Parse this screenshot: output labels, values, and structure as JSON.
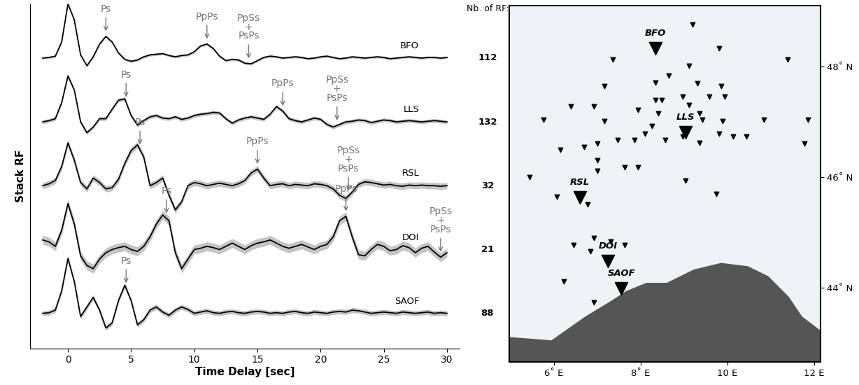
{
  "chart_data": [
    {
      "type": "line",
      "xlabel": "Time Delay [sec]",
      "ylabel": "Stack RF",
      "count_label": "Nb. of RF:",
      "tick_labels": "x",
      "xlim": [
        -3,
        31
      ],
      "xticks": [
        0,
        5,
        10,
        15,
        20,
        25,
        30
      ],
      "x": [
        -2,
        -1.5,
        -1,
        -0.5,
        0,
        0.5,
        1,
        1.5,
        2,
        2.5,
        3,
        3.5,
        4,
        4.5,
        5,
        5.5,
        6,
        6.5,
        7,
        7.5,
        8,
        8.5,
        9,
        9.5,
        10,
        10.5,
        11,
        11.5,
        12,
        12.5,
        13,
        13.5,
        14,
        14.5,
        15,
        15.5,
        16,
        16.5,
        17,
        17.5,
        18,
        18.5,
        19,
        19.5,
        20,
        20.5,
        21,
        21.5,
        22,
        22.5,
        23,
        23.5,
        24,
        24.5,
        25,
        25.5,
        26,
        26.5,
        27,
        27.5,
        28,
        28.5,
        29,
        29.5,
        30
      ],
      "series": [
        {
          "name": "BFO",
          "color": "#000000",
          "count": 112,
          "error": 0.02,
          "values": [
            0.0,
            0.01,
            0.03,
            0.25,
            0.85,
            0.6,
            0.05,
            -0.12,
            0.02,
            0.22,
            0.34,
            0.25,
            0.08,
            -0.02,
            -0.05,
            -0.03,
            0.02,
            0.05,
            0.06,
            0.07,
            0.04,
            0.02,
            0.04,
            0.05,
            0.1,
            0.19,
            0.22,
            0.15,
            0.03,
            -0.04,
            -0.02,
            -0.03,
            -0.08,
            -0.09,
            -0.04,
            0.01,
            0.03,
            0.02,
            0.0,
            0.01,
            0.02,
            0.01,
            -0.01,
            0.0,
            0.02,
            0.03,
            0.01,
            -0.01,
            0.0,
            0.02,
            0.01,
            0.0,
            0.01,
            0.02,
            0.01,
            -0.01,
            0.0,
            0.01,
            0.02,
            0.01,
            0.0,
            0.01,
            0.01,
            0.0,
            0.01
          ],
          "phases": [
            {
              "label": "Ps",
              "x": 3.0
            },
            {
              "label": "PpPs",
              "x": 11.0
            },
            {
              "label": "PpSs\n+\nPsPs",
              "x": 14.3
            }
          ]
        },
        {
          "name": "LLS",
          "color": "#000000",
          "count": 132,
          "error": 0.03,
          "values": [
            0.0,
            0.02,
            0.05,
            0.3,
            0.72,
            0.5,
            0.0,
            -0.17,
            -0.08,
            0.05,
            0.05,
            0.2,
            0.34,
            0.36,
            0.1,
            -0.05,
            0.02,
            0.08,
            0.1,
            0.06,
            0.05,
            0.08,
            0.04,
            0.06,
            0.1,
            0.12,
            0.13,
            0.15,
            0.14,
            0.05,
            -0.02,
            0.03,
            0.06,
            0.08,
            0.06,
            0.04,
            0.12,
            0.24,
            0.17,
            0.05,
            0.02,
            0.0,
            0.03,
            0.06,
            0.04,
            -0.04,
            -0.08,
            -0.04,
            0.0,
            0.01,
            0.03,
            0.02,
            -0.01,
            0.01,
            0.03,
            0.02,
            0.0,
            0.01,
            0.02,
            0.01,
            0.0,
            0.01,
            0.02,
            0.01,
            0.0
          ],
          "phases": [
            {
              "label": "Ps",
              "x": 4.6
            },
            {
              "label": "PpPs",
              "x": 17.0
            },
            {
              "label": "PpSs\n+\nPsPs",
              "x": 21.3
            }
          ]
        },
        {
          "name": "RSL",
          "color": "#000000",
          "count": 32,
          "error": 0.05,
          "values": [
            0.0,
            0.03,
            0.08,
            0.3,
            0.67,
            0.4,
            0.05,
            -0.05,
            0.12,
            0.05,
            -0.05,
            -0.03,
            0.1,
            0.35,
            0.55,
            0.64,
            0.45,
            0.0,
            0.05,
            0.12,
            -0.15,
            -0.38,
            -0.25,
            0.0,
            0.05,
            0.03,
            0.0,
            0.02,
            0.04,
            0.02,
            0.0,
            0.03,
            0.08,
            0.2,
            0.26,
            0.12,
            0.0,
            0.02,
            0.03,
            0.0,
            0.02,
            0.01,
            0.0,
            0.03,
            0.02,
            0.0,
            -0.05,
            -0.15,
            -0.2,
            -0.1,
            0.02,
            0.06,
            0.05,
            0.03,
            0.01,
            0.02,
            0.0,
            -0.01,
            0.01,
            0.0,
            0.01,
            0.0,
            0.0,
            -0.01,
            0.0
          ],
          "phases": [
            {
              "label": "Ps",
              "x": 5.7
            },
            {
              "label": "PpPs",
              "x": 15.0
            },
            {
              "label": "PpSs\n+\nPsPs",
              "x": 22.2
            }
          ]
        },
        {
          "name": "DOI",
          "color": "#000000",
          "count": 21,
          "error": 0.07,
          "values": [
            0.15,
            0.12,
            0.05,
            0.3,
            0.72,
            0.4,
            -0.1,
            -0.25,
            -0.3,
            -0.15,
            -0.05,
            0.0,
            0.03,
            0.05,
            0.0,
            -0.03,
            0.05,
            0.2,
            0.4,
            0.54,
            0.45,
            -0.05,
            -0.3,
            -0.15,
            0.0,
            0.02,
            0.05,
            0.03,
            0.0,
            0.05,
            0.1,
            0.05,
            0.0,
            0.06,
            0.1,
            0.12,
            0.15,
            0.1,
            0.05,
            0.02,
            0.05,
            0.08,
            0.04,
            0.0,
            0.05,
            0.08,
            0.2,
            0.45,
            0.52,
            0.2,
            -0.08,
            -0.1,
            0.0,
            0.08,
            0.05,
            -0.02,
            0.0,
            0.06,
            0.03,
            -0.05,
            0.02,
            0.05,
            -0.04,
            -0.12,
            -0.05
          ],
          "phases": [
            {
              "label": "Ps",
              "x": 7.8
            },
            {
              "label": "PpPs",
              "x": 22.0
            },
            {
              "label": "PpSs\n+\nPsPs",
              "x": 29.5
            }
          ]
        },
        {
          "name": "SAOF",
          "color": "#000000",
          "count": 88,
          "error": 0.04,
          "values": [
            0.0,
            0.01,
            0.05,
            0.35,
            0.86,
            0.5,
            -0.05,
            0.1,
            0.25,
            0.05,
            -0.23,
            -0.15,
            0.2,
            0.44,
            0.2,
            -0.18,
            -0.1,
            0.05,
            0.1,
            0.02,
            -0.03,
            0.05,
            0.1,
            0.06,
            0.0,
            0.02,
            0.04,
            0.01,
            0.0,
            0.02,
            0.03,
            0.01,
            0.0,
            0.02,
            0.03,
            0.02,
            0.0,
            0.01,
            0.0,
            0.02,
            0.03,
            0.01,
            0.0,
            0.02,
            0.01,
            0.0,
            0.02,
            0.03,
            0.02,
            0.05,
            0.04,
            0.02,
            0.0,
            0.01,
            0.02,
            0.01,
            0.0,
            0.02,
            0.01,
            0.0,
            0.01,
            0.02,
            0.0,
            0.01,
            0.0
          ],
          "phases": [
            {
              "label": "Ps",
              "x": 4.6
            }
          ]
        }
      ]
    },
    {
      "type": "map",
      "xlim": [
        4.97,
        12.14
      ],
      "ylim": [
        42.66,
        49.1
      ],
      "xticks": [
        {
          "value": 6,
          "label": "6˚ E"
        },
        {
          "value": 8,
          "label": "8˚ E"
        },
        {
          "value": 10,
          "label": "10 E"
        },
        {
          "value": 12,
          "label": "12 E"
        }
      ],
      "yticks": [
        {
          "value": 44,
          "label": "44˚ N"
        },
        {
          "value": 46,
          "label": "46˚ N"
        },
        {
          "value": 48,
          "label": "48˚ N"
        }
      ],
      "sea": [
        [
          4.97,
          43.11
        ],
        [
          5.94,
          43.05
        ],
        [
          6.72,
          43.48
        ],
        [
          7.35,
          43.78
        ],
        [
          7.66,
          43.94
        ],
        [
          8.13,
          44.09
        ],
        [
          8.6,
          44.09
        ],
        [
          9.22,
          44.33
        ],
        [
          9.85,
          44.45
        ],
        [
          10.47,
          44.39
        ],
        [
          10.94,
          44.21
        ],
        [
          11.41,
          43.84
        ],
        [
          11.72,
          43.48
        ],
        [
          12.14,
          43.23
        ],
        [
          12.14,
          42.66
        ],
        [
          4.97,
          42.66
        ]
      ],
      "stations": [
        {
          "name": "BFO",
          "lon": 8.33,
          "lat": 48.33
        },
        {
          "name": "LLS",
          "lon": 9.03,
          "lat": 46.81
        },
        {
          "name": "RSL",
          "lon": 6.6,
          "lat": 45.63
        },
        {
          "name": "DOI",
          "lon": 7.24,
          "lat": 44.48
        },
        {
          "name": "SAOF",
          "lon": 7.55,
          "lat": 43.99
        }
      ],
      "other_stations": {
        "lon": [
          9.19,
          9.81,
          11.38,
          7.36,
          9.11,
          8.64,
          7.16,
          8.33,
          9.31,
          9.86,
          6.38,
          6.92,
          8.33,
          8.49,
          8.96,
          9.11,
          9.58,
          9.94,
          7.94,
          5.75,
          7.16,
          8.41,
          9.35,
          9.42,
          9.89,
          10.83,
          11.85,
          6.14,
          6.69,
          7.0,
          7.47,
          7.86,
          8.1,
          8.25,
          8.56,
          8.96,
          9.35,
          9.81,
          10.13,
          10.44,
          11.77,
          7.0,
          7.63,
          7.94,
          7.0,
          5.44,
          9.03,
          9.74,
          6.06,
          6.77,
          6.45,
          6.92,
          6.84,
          7.31,
          7.63,
          6.22,
          6.92
        ],
        "lat": [
          48.76,
          48.33,
          48.13,
          48.13,
          48.01,
          47.84,
          47.65,
          47.71,
          47.7,
          47.65,
          47.28,
          47.28,
          47.4,
          47.4,
          47.46,
          47.31,
          47.46,
          47.46,
          47.22,
          47.04,
          47.01,
          47.16,
          47.16,
          47.04,
          47.01,
          47.04,
          47.04,
          46.5,
          46.55,
          46.61,
          46.67,
          46.67,
          46.79,
          46.92,
          46.67,
          46.74,
          46.62,
          46.79,
          46.73,
          46.73,
          46.61,
          46.31,
          46.18,
          46.18,
          46.12,
          46.0,
          45.94,
          45.7,
          45.65,
          45.51,
          44.78,
          44.9,
          44.66,
          44.84,
          44.78,
          44.11,
          43.74
        ]
      }
    }
  ]
}
